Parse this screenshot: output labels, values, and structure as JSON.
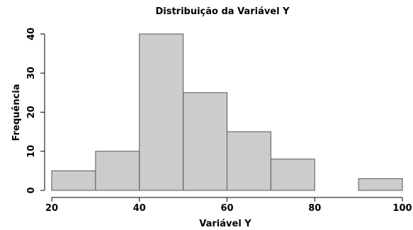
{
  "chart_data": {
    "type": "bar",
    "title": "Distribuição da Variável Y",
    "xlabel": "Variável Y",
    "ylabel": "Frequência",
    "bins": [
      {
        "from": 20,
        "to": 30,
        "count": 5
      },
      {
        "from": 30,
        "to": 40,
        "count": 10
      },
      {
        "from": 40,
        "to": 50,
        "count": 40
      },
      {
        "from": 50,
        "to": 60,
        "count": 25
      },
      {
        "from": 60,
        "to": 70,
        "count": 15
      },
      {
        "from": 70,
        "to": 80,
        "count": 8
      },
      {
        "from": 80,
        "to": 90,
        "count": 0
      },
      {
        "from": 90,
        "to": 100,
        "count": 3
      }
    ],
    "x_ticks": [
      "20",
      "40",
      "60",
      "80",
      "100"
    ],
    "y_ticks": [
      "0",
      "10",
      "20",
      "30",
      "40"
    ],
    "xlim": [
      20,
      100
    ],
    "ylim": [
      0,
      40
    ],
    "grid": false,
    "bar_color": "#cccccc"
  }
}
